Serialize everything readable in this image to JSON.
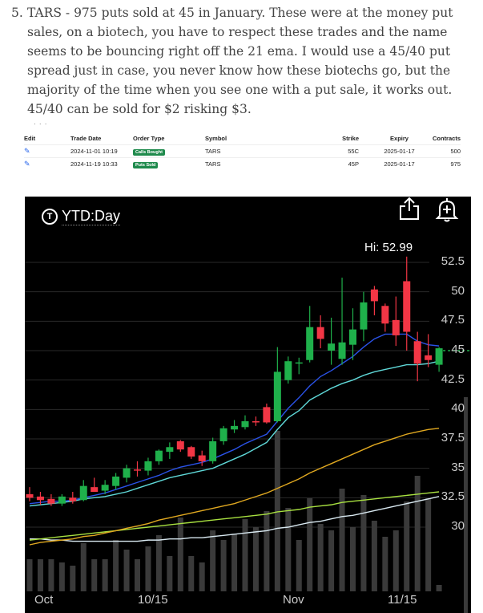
{
  "article": {
    "number": "5.",
    "text": "TARS - 975 puts sold at 45 in January. These were at the money put sales, on a biotech, you have to respect these trades and the name seems to be bouncing right off the 21 ema. I would use a 45/40 put spread just in case, you never know how these biotechs go, but the majority of the time when you see one with a put sale, it works out. 45/40 can be sold for $2 risking $3."
  },
  "trades": {
    "headers": [
      "Edit",
      "Trade Date",
      "Order Type",
      "Symbol",
      "Strike",
      "Expiry",
      "Contracts"
    ],
    "rows": [
      {
        "date": "2024-11-01 10:19",
        "type": "Calls Bought",
        "symbol": "TARS",
        "strike": "55C",
        "expiry": "2025-01-17",
        "contracts": "500"
      },
      {
        "date": "2024-11-19 10:33",
        "type": "Puts Sold",
        "symbol": "TARS",
        "strike": "45P",
        "expiry": "2025-01-17",
        "contracts": "975"
      }
    ]
  },
  "chart": {
    "timeframe": "YTD:Day",
    "hi_label": "Hi: 52.99",
    "current_price_label": "45",
    "colors": {
      "up": "#1fb04b",
      "down": "#f23645",
      "ema_fast": "#2a52e8",
      "ema_mid": "#5fd8d8",
      "ema_slow": "#e0a820",
      "ema_long": "#a8e040",
      "ema_200": "#d8e8f0"
    }
  },
  "chart_data": {
    "type": "candlestick",
    "y_ticks": [
      "52.5",
      "50",
      "47.5",
      "45",
      "42.5",
      "40",
      "37.5",
      "35",
      "32.5",
      "30"
    ],
    "x_ticks": [
      "Oct",
      "10/15",
      "Nov",
      "11/15"
    ],
    "ylim": [
      27.5,
      54
    ],
    "candles": [
      {
        "o": 32.8,
        "h": 33.4,
        "l": 32.2,
        "c": 32.5
      },
      {
        "o": 32.6,
        "h": 33.0,
        "l": 31.9,
        "c": 32.3
      },
      {
        "o": 32.4,
        "h": 32.8,
        "l": 31.8,
        "c": 32.0
      },
      {
        "o": 32.0,
        "h": 32.8,
        "l": 31.8,
        "c": 32.6
      },
      {
        "o": 32.5,
        "h": 33.0,
        "l": 32.0,
        "c": 32.2
      },
      {
        "o": 32.3,
        "h": 34.0,
        "l": 32.2,
        "c": 33.5
      },
      {
        "o": 33.4,
        "h": 34.2,
        "l": 33.0,
        "c": 33.0
      },
      {
        "o": 33.1,
        "h": 34.0,
        "l": 32.8,
        "c": 33.6
      },
      {
        "o": 33.5,
        "h": 34.6,
        "l": 33.2,
        "c": 34.3
      },
      {
        "o": 34.2,
        "h": 35.3,
        "l": 33.8,
        "c": 35.0
      },
      {
        "o": 34.9,
        "h": 35.6,
        "l": 34.3,
        "c": 34.8
      },
      {
        "o": 34.8,
        "h": 35.9,
        "l": 34.4,
        "c": 35.6
      },
      {
        "o": 35.6,
        "h": 36.6,
        "l": 35.3,
        "c": 36.5
      },
      {
        "o": 36.4,
        "h": 37.2,
        "l": 35.8,
        "c": 36.8
      },
      {
        "o": 37.3,
        "h": 37.4,
        "l": 36.4,
        "c": 36.6
      },
      {
        "o": 36.8,
        "h": 36.9,
        "l": 35.8,
        "c": 36.0
      },
      {
        "o": 36.1,
        "h": 36.5,
        "l": 35.2,
        "c": 35.6
      },
      {
        "o": 35.6,
        "h": 37.6,
        "l": 35.4,
        "c": 37.3
      },
      {
        "o": 37.3,
        "h": 38.6,
        "l": 37.0,
        "c": 38.4
      },
      {
        "o": 38.3,
        "h": 39.1,
        "l": 38.0,
        "c": 38.6
      },
      {
        "o": 38.5,
        "h": 39.5,
        "l": 38.3,
        "c": 39.0
      },
      {
        "o": 39.0,
        "h": 39.4,
        "l": 38.6,
        "c": 38.9
      },
      {
        "o": 40.2,
        "h": 40.5,
        "l": 38.8,
        "c": 38.9
      },
      {
        "o": 39.0,
        "h": 45.3,
        "l": 38.9,
        "c": 43.2
      },
      {
        "o": 42.5,
        "h": 44.5,
        "l": 42.2,
        "c": 44.1
      },
      {
        "o": 44.0,
        "h": 44.4,
        "l": 43.0,
        "c": 44.0
      },
      {
        "o": 44.2,
        "h": 48.8,
        "l": 44.0,
        "c": 47.0
      },
      {
        "o": 47.0,
        "h": 48.0,
        "l": 45.2,
        "c": 46.0
      },
      {
        "o": 45.0,
        "h": 47.8,
        "l": 43.8,
        "c": 45.6
      },
      {
        "o": 44.3,
        "h": 51.2,
        "l": 43.8,
        "c": 45.7
      },
      {
        "o": 45.5,
        "h": 48.6,
        "l": 44.2,
        "c": 46.8
      },
      {
        "o": 46.8,
        "h": 50.0,
        "l": 45.8,
        "c": 49.1
      },
      {
        "o": 50.2,
        "h": 50.5,
        "l": 48.0,
        "c": 49.2
      },
      {
        "o": 48.8,
        "h": 49.0,
        "l": 46.6,
        "c": 47.3
      },
      {
        "o": 47.6,
        "h": 49.6,
        "l": 45.4,
        "c": 46.3
      },
      {
        "o": 50.9,
        "h": 52.99,
        "l": 45.0,
        "c": 46.6
      },
      {
        "o": 45.8,
        "h": 46.6,
        "l": 42.4,
        "c": 43.9
      },
      {
        "o": 44.6,
        "h": 46.4,
        "l": 43.6,
        "c": 44.2
      },
      {
        "o": 43.8,
        "h": 45.3,
        "l": 43.2,
        "c": 45.2
      }
    ],
    "volume": [
      0.2,
      0.2,
      0.2,
      0.18,
      0.16,
      0.3,
      0.2,
      0.2,
      0.32,
      0.26,
      0.2,
      0.28,
      0.35,
      0.22,
      0.46,
      0.22,
      0.18,
      0.38,
      0.32,
      0.36,
      0.45,
      0.4,
      0.5,
      1.0,
      0.52,
      0.32,
      0.58,
      0.42,
      0.38,
      0.64,
      0.4,
      0.6,
      0.44,
      0.34,
      0.38,
      0.56,
      0.72,
      0.58,
      0.04
    ],
    "ema_fast": [
      32.0,
      32.1,
      32.2,
      32.2,
      32.3,
      32.5,
      32.7,
      32.9,
      33.2,
      33.5,
      33.8,
      34.1,
      34.4,
      34.8,
      35.1,
      35.3,
      35.5,
      35.8,
      36.2,
      36.6,
      37.1,
      37.5,
      37.9,
      39.0,
      40.1,
      41.0,
      42.0,
      42.8,
      43.3,
      43.9,
      44.5,
      45.3,
      46.0,
      46.4,
      46.4,
      46.4,
      45.8,
      45.5,
      45.4
    ],
    "ema_mid": [
      31.8,
      31.9,
      32.0,
      32.1,
      32.2,
      32.4,
      32.5,
      32.6,
      32.8,
      33.0,
      33.3,
      33.6,
      33.9,
      34.2,
      34.4,
      34.6,
      34.8,
      35.0,
      35.4,
      35.8,
      36.2,
      36.7,
      37.2,
      38.3,
      39.3,
      39.9,
      40.8,
      41.3,
      41.8,
      42.2,
      42.5,
      42.9,
      43.2,
      43.4,
      43.6,
      43.8,
      43.8,
      43.9,
      44.1
    ],
    "ema_slow": [
      28.5,
      28.7,
      28.8,
      28.9,
      29.0,
      29.2,
      29.3,
      29.5,
      29.7,
      29.9,
      30.1,
      30.3,
      30.6,
      30.8,
      31.0,
      31.2,
      31.4,
      31.6,
      31.8,
      32.0,
      32.3,
      32.6,
      32.9,
      33.3,
      33.7,
      34.1,
      34.6,
      35.0,
      35.4,
      35.8,
      36.2,
      36.6,
      37.0,
      37.3,
      37.6,
      37.9,
      38.1,
      38.3,
      38.4
    ],
    "ema_long": [
      28.9,
      29.0,
      29.1,
      29.2,
      29.3,
      29.4,
      29.5,
      29.6,
      29.7,
      29.8,
      29.9,
      30.0,
      30.1,
      30.2,
      30.3,
      30.4,
      30.5,
      30.6,
      30.7,
      30.8,
      30.9,
      31.0,
      31.1,
      31.3,
      31.4,
      31.5,
      31.7,
      31.8,
      31.9,
      32.1,
      32.2,
      32.3,
      32.4,
      32.5,
      32.6,
      32.7,
      32.8,
      32.9,
      33.0
    ],
    "ema_200": [
      29.0,
      29.0,
      28.9,
      28.9,
      28.8,
      28.8,
      28.8,
      28.8,
      28.8,
      28.8,
      28.8,
      28.9,
      28.9,
      29.0,
      29.0,
      29.1,
      29.1,
      29.2,
      29.3,
      29.4,
      29.5,
      29.6,
      29.7,
      29.9,
      30.0,
      30.2,
      30.4,
      30.5,
      30.7,
      30.9,
      31.0,
      31.2,
      31.4,
      31.6,
      31.8,
      32.0,
      32.2,
      32.4,
      32.6
    ]
  }
}
